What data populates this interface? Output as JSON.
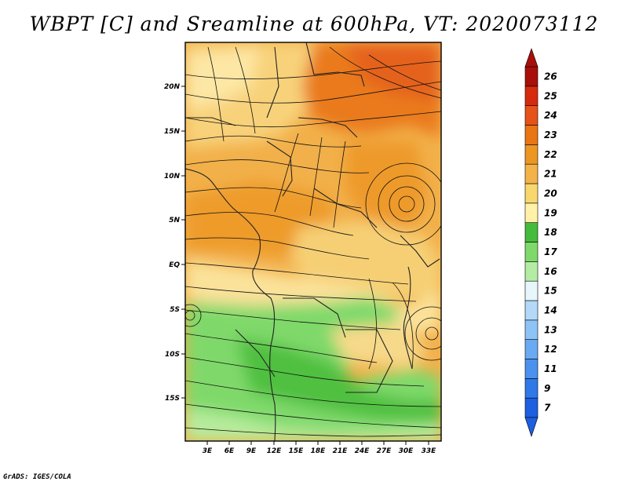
{
  "title": "WBPT [C] and Sreamline at 600hPa, VT: 2020073112",
  "credit": "GrADS: IGES/COLA",
  "map": {
    "variable": "Wet-bulb potential temperature [C] with streamlines",
    "level": "600hPa",
    "valid_time": "2020073112",
    "lat_labels": [
      "20N",
      "15N",
      "10N",
      "5N",
      "EQ",
      "5S",
      "10S",
      "15S"
    ],
    "lon_labels": [
      "3E",
      "6E",
      "9E",
      "12E",
      "15E",
      "18E",
      "21E",
      "24E",
      "27E",
      "30E",
      "33E"
    ]
  },
  "colorbar": {
    "labels": [
      "7",
      "9",
      "11",
      "12",
      "13",
      "14",
      "15",
      "16",
      "17",
      "18",
      "19",
      "20",
      "21",
      "22",
      "23",
      "24",
      "25",
      "26"
    ],
    "colors": [
      "#1e5ee0",
      "#2f78e8",
      "#4a92ee",
      "#6aaaf2",
      "#8ec3f6",
      "#b4d9f8",
      "#e6f6fb",
      "#b4eca4",
      "#7ed96a",
      "#44bb3c",
      "#fff2a8",
      "#f8d86e",
      "#f3b348",
      "#ec9624",
      "#e97514",
      "#e5521a",
      "#d62a0e",
      "#a80f0a"
    ]
  }
}
